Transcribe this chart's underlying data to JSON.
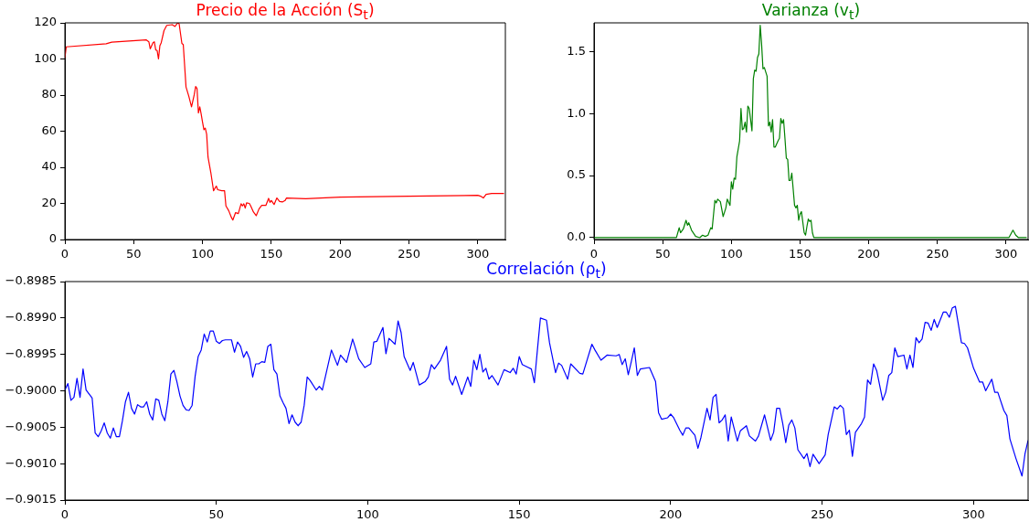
{
  "chart_data": [
    {
      "type": "line",
      "title": "Precio de la Acción (S$_{t}$)",
      "xlim": [
        0,
        320
      ],
      "ylim": [
        0,
        120
      ],
      "xticks": [
        0,
        50,
        100,
        150,
        200,
        250,
        300
      ],
      "yticks": [
        0,
        20,
        40,
        60,
        80,
        100,
        120
      ],
      "x": [
        0,
        1,
        30,
        34,
        59,
        61,
        62,
        64,
        65,
        66,
        67,
        68,
        69,
        70,
        72,
        74,
        78,
        80,
        82,
        83,
        85,
        86,
        87,
        88,
        90,
        92,
        94,
        95,
        96,
        97,
        98,
        99,
        100,
        101,
        102,
        103,
        104,
        106,
        108,
        110,
        111,
        114,
        116,
        117,
        119,
        121,
        122,
        124,
        126,
        128,
        129,
        130,
        131,
        132,
        134,
        135,
        137,
        139,
        141,
        143,
        146,
        148,
        149,
        150,
        152,
        154,
        156,
        158,
        160,
        161,
        175,
        200,
        250,
        300,
        302,
        304,
        306,
        310,
        319
      ],
      "series": [
        {
          "color": "#ff0000",
          "values": [
            100.5,
            106.7,
            108.4,
            109.3,
            110.6,
            109.5,
            105.6,
            109,
            109.5,
            105,
            104.7,
            100,
            107.3,
            109,
            115.7,
            118.6,
            119,
            118,
            120,
            119.5,
            108.6,
            108,
            96.3,
            84.5,
            79.4,
            73.5,
            80.3,
            84.8,
            83.6,
            70.1,
            73.5,
            69.6,
            65,
            60.8,
            61.7,
            58.3,
            45.6,
            37.2,
            27,
            29.6,
            27.6,
            27,
            27,
            18.6,
            16,
            12.2,
            10.8,
            14.9,
            14.4,
            19.8,
            18.6,
            19.8,
            17.4,
            20.3,
            20,
            18.6,
            15.2,
            13.2,
            16.9,
            18.9,
            18.9,
            22.8,
            20.6,
            21.6,
            19.4,
            23,
            21.1,
            20.8,
            21.6,
            23,
            22.6,
            23.5,
            24,
            24.5,
            24,
            23,
            25,
            25.5,
            25.5
          ]
        }
      ]
    },
    {
      "type": "line",
      "title": "Varianza (v$_{t}$)",
      "xlim": [
        0,
        316
      ],
      "ylim": [
        -0.015,
        1.73
      ],
      "xticks": [
        0,
        50,
        100,
        150,
        200,
        250,
        300
      ],
      "yticks": [
        {
          "value": 0,
          "label": "0.0"
        },
        {
          "value": 0.5,
          "label": "0.5"
        },
        {
          "value": 1,
          "label": "1.0"
        },
        {
          "value": 1.5,
          "label": "1.5"
        }
      ],
      "x": [
        0,
        60,
        62,
        63,
        65,
        67,
        68,
        69,
        71,
        74,
        77,
        79,
        81,
        83,
        85,
        86,
        88,
        89,
        90,
        92,
        94,
        96,
        97,
        99,
        100,
        101,
        102,
        103,
        104,
        106,
        107,
        108,
        109,
        110,
        111,
        112,
        113,
        115,
        116,
        117,
        118,
        119,
        120,
        121,
        122,
        123,
        124,
        126,
        127,
        128,
        129,
        130,
        131,
        132,
        134,
        135,
        136,
        137,
        138,
        139,
        140,
        141,
        142,
        143,
        144,
        145,
        146,
        147,
        148,
        149,
        150,
        151,
        153,
        154,
        155,
        156,
        157,
        158,
        159,
        160,
        300,
        302,
        305,
        307,
        309,
        315
      ],
      "series": [
        {
          "color": "#008000",
          "values": [
            0,
            0,
            0.08,
            0.04,
            0.07,
            0.14,
            0.1,
            0.12,
            0.06,
            0.01,
            0,
            0.02,
            0.01,
            0.02,
            0.08,
            0.07,
            0.3,
            0.28,
            0.31,
            0.29,
            0.17,
            0.24,
            0.31,
            0.26,
            0.45,
            0.39,
            0.48,
            0.47,
            0.65,
            0.78,
            1.04,
            0.87,
            0.88,
            0.93,
            0.85,
            1.06,
            1.04,
            0.86,
            1.28,
            1.35,
            1.34,
            1.45,
            1.48,
            1.71,
            1.56,
            1.36,
            1.37,
            1.3,
            0.9,
            0.93,
            0.85,
            0.95,
            0.73,
            0.73,
            0.78,
            0.8,
            0.96,
            0.92,
            0.95,
            0.8,
            0.64,
            0.63,
            0.46,
            0.46,
            0.52,
            0.39,
            0.26,
            0.24,
            0.26,
            0.14,
            0.19,
            0.21,
            0.04,
            0.02,
            0.09,
            0.15,
            0.13,
            0.14,
            0.04,
            0,
            0,
            0,
            0.06,
            0.02,
            0,
            0
          ]
        }
      ]
    },
    {
      "type": "line",
      "title": "Correlación (ρ$_{t}$)",
      "xlim": [
        0,
        318
      ],
      "ylim": [
        -0.9015,
        -0.8985
      ],
      "xticks": [
        0,
        50,
        100,
        150,
        200,
        250,
        300
      ],
      "yticks": [
        {
          "value": -0.9015,
          "label": "−0.9015"
        },
        {
          "value": -0.901,
          "label": "−0.9010"
        },
        {
          "value": -0.9005,
          "label": "−0.9005"
        },
        {
          "value": -0.9,
          "label": "−0.9000"
        },
        {
          "value": -0.8995,
          "label": "−0.8995"
        },
        {
          "value": -0.899,
          "label": "−0.8990"
        },
        {
          "value": -0.8985,
          "label": "−0.8985"
        }
      ],
      "x": [
        0,
        1,
        2,
        3,
        4,
        5,
        6,
        7,
        9,
        10,
        11,
        12,
        13,
        14,
        15,
        16,
        17,
        18,
        19,
        20,
        21,
        22,
        23,
        24,
        25,
        26,
        27,
        28,
        29,
        30,
        31,
        32,
        33,
        34,
        35,
        36,
        37,
        38,
        39,
        40,
        41,
        42,
        43,
        44,
        45,
        46,
        47,
        48,
        49,
        50,
        51,
        52,
        53,
        55,
        56,
        57,
        58,
        59,
        60,
        61,
        62,
        63,
        64,
        65,
        66,
        67,
        68,
        69,
        70,
        71,
        72,
        73,
        74,
        75,
        76,
        77,
        78,
        79,
        80,
        81,
        83,
        84,
        85,
        88,
        90,
        91,
        93,
        95,
        97,
        99,
        101,
        102,
        103,
        105,
        106,
        107,
        109,
        110,
        111,
        112,
        114,
        115,
        117,
        119,
        120,
        121,
        122,
        124,
        126,
        127,
        128,
        129,
        131,
        133,
        134,
        135,
        136,
        137,
        138,
        139,
        140,
        141,
        143,
        145,
        147,
        148,
        149,
        150,
        151,
        153,
        154,
        155,
        156,
        157,
        159,
        160,
        162,
        163,
        164,
        166,
        167,
        170,
        171,
        174,
        175,
        177,
        179,
        182,
        183,
        184,
        185,
        186,
        187,
        188,
        189,
        190,
        193,
        195,
        196,
        197,
        199,
        200,
        201,
        203,
        204,
        205,
        206,
        208,
        209,
        210,
        212,
        213,
        214,
        215,
        216,
        217,
        218,
        219,
        220,
        222,
        223,
        225,
        226,
        228,
        229,
        231,
        233,
        234,
        235,
        236,
        237,
        238,
        239,
        240,
        241,
        242,
        244,
        245,
        246,
        247,
        249,
        251,
        252,
        254,
        255,
        256,
        257,
        258,
        259,
        260,
        261,
        263,
        264,
        265,
        266,
        267,
        268,
        270,
        271,
        272,
        273,
        274,
        275,
        277,
        278,
        279,
        280,
        281,
        282,
        283,
        284,
        285,
        286,
        287,
        288,
        290,
        291,
        292,
        293,
        294,
        296,
        297,
        298,
        300,
        302,
        303,
        304,
        306,
        307,
        308,
        310,
        311,
        312,
        314,
        316,
        317,
        318
      ],
      "series": [
        {
          "color": "#0000ff",
          "values": [
            -0.89999,
            -0.8999,
            -0.90013,
            -0.90009,
            -0.89983,
            -0.90009,
            -0.8997,
            -0.89999,
            -0.9001,
            -0.90058,
            -0.90063,
            -0.90055,
            -0.90044,
            -0.90058,
            -0.90065,
            -0.90051,
            -0.90063,
            -0.90063,
            -0.90041,
            -0.90015,
            -0.90002,
            -0.90024,
            -0.90032,
            -0.90019,
            -0.90022,
            -0.90022,
            -0.90015,
            -0.90032,
            -0.9004,
            -0.90011,
            -0.90013,
            -0.90032,
            -0.90041,
            -0.90015,
            -0.89977,
            -0.89972,
            -0.89988,
            -0.90007,
            -0.9002,
            -0.90026,
            -0.90027,
            -0.9002,
            -0.8998,
            -0.89953,
            -0.89944,
            -0.89922,
            -0.89933,
            -0.89918,
            -0.89918,
            -0.89932,
            -0.89935,
            -0.89931,
            -0.8993,
            -0.8993,
            -0.89947,
            -0.89933,
            -0.89939,
            -0.89954,
            -0.89946,
            -0.89956,
            -0.89981,
            -0.89963,
            -0.89963,
            -0.8996,
            -0.89961,
            -0.89939,
            -0.89936,
            -0.89971,
            -0.89977,
            -0.90007,
            -0.90016,
            -0.90024,
            -0.90045,
            -0.90033,
            -0.90043,
            -0.90048,
            -0.90043,
            -0.9002,
            -0.89981,
            -0.89986,
            -0.89999,
            -0.89994,
            -0.89999,
            -0.89944,
            -0.89965,
            -0.89951,
            -0.89961,
            -0.89929,
            -0.89956,
            -0.89968,
            -0.89963,
            -0.89933,
            -0.89932,
            -0.89913,
            -0.89949,
            -0.89928,
            -0.89936,
            -0.89904,
            -0.8992,
            -0.89953,
            -0.89972,
            -0.89961,
            -0.89992,
            -0.89987,
            -0.89981,
            -0.89964,
            -0.8997,
            -0.89958,
            -0.89939,
            -0.89984,
            -0.89992,
            -0.8998,
            -0.90005,
            -0.89981,
            -0.89994,
            -0.89958,
            -0.89971,
            -0.8995,
            -0.89974,
            -0.89969,
            -0.89984,
            -0.89979,
            -0.89992,
            -0.89971,
            -0.89975,
            -0.89969,
            -0.89977,
            -0.89953,
            -0.89964,
            -0.89968,
            -0.8997,
            -0.89989,
            -0.89944,
            -0.899,
            -0.89903,
            -0.89934,
            -0.89975,
            -0.89962,
            -0.89965,
            -0.89984,
            -0.89963,
            -0.89976,
            -0.89977,
            -0.89936,
            -0.89944,
            -0.89958,
            -0.89951,
            -0.89952,
            -0.8995,
            -0.89964,
            -0.89956,
            -0.89978,
            -0.8996,
            -0.89941,
            -0.89979,
            -0.8997,
            -0.89968,
            -0.89987,
            -0.9003,
            -0.90039,
            -0.90037,
            -0.90032,
            -0.90037,
            -0.90054,
            -0.90061,
            -0.90051,
            -0.90051,
            -0.90061,
            -0.90079,
            -0.90064,
            -0.90024,
            -0.9004,
            -0.90009,
            -0.90005,
            -0.90044,
            -0.9004,
            -0.90033,
            -0.90069,
            -0.90036,
            -0.90069,
            -0.90055,
            -0.90048,
            -0.90062,
            -0.90069,
            -0.90062,
            -0.90033,
            -0.90068,
            -0.90057,
            -0.90024,
            -0.90024,
            -0.90045,
            -0.90071,
            -0.90047,
            -0.9004,
            -0.90051,
            -0.90081,
            -0.90093,
            -0.90086,
            -0.90104,
            -0.90087,
            -0.901,
            -0.90088,
            -0.9006,
            -0.90022,
            -0.90025,
            -0.9002,
            -0.90024,
            -0.9006,
            -0.90054,
            -0.9009,
            -0.90057,
            -0.90045,
            -0.90036,
            -0.89985,
            -0.89991,
            -0.89963,
            -0.89972,
            -0.90013,
            -0.90002,
            -0.89979,
            -0.89975,
            -0.89941,
            -0.89953,
            -0.89951,
            -0.8997,
            -0.89951,
            -0.89968,
            -0.89927,
            -0.89934,
            -0.89929,
            -0.89906,
            -0.89907,
            -0.89917,
            -0.89902,
            -0.89913,
            -0.89892,
            -0.89892,
            -0.89899,
            -0.89886,
            -0.89884,
            -0.89934,
            -0.89935,
            -0.89941,
            -0.89969,
            -0.89988,
            -0.89988,
            -0.9,
            -0.89984,
            -0.90002,
            -0.90002,
            -0.90027,
            -0.90034,
            -0.90066,
            -0.90093,
            -0.90117,
            -0.90086,
            -0.90068
          ]
        }
      ]
    }
  ]
}
